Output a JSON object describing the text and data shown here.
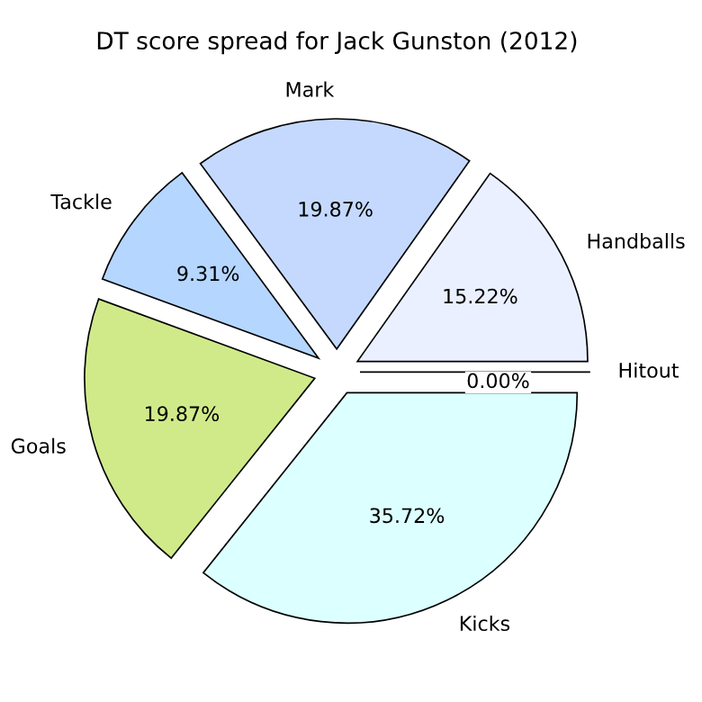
{
  "chart_data": {
    "type": "pie",
    "title": "DT score spread for Jack Gunston (2012)",
    "categories": [
      "Handballs",
      "Mark",
      "Tackle",
      "Goals",
      "Kicks",
      "Hitout"
    ],
    "values": [
      15.22,
      19.87,
      9.31,
      19.87,
      35.72,
      0.0
    ],
    "value_labels": [
      "15.22%",
      "19.87%",
      "9.31%",
      "19.87%",
      "35.72%",
      "0.00%"
    ],
    "colors": [
      "#eaf0ff",
      "#c5d9ff",
      "#b5d6ff",
      "#d0ea8a",
      "#dcffff",
      "#ffe0e0"
    ]
  }
}
